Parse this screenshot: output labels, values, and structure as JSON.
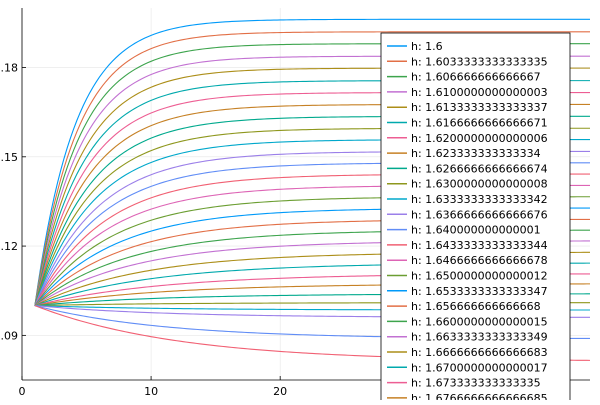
{
  "chart_data": {
    "type": "line",
    "title": "",
    "xlabel": "",
    "ylabel": "",
    "xlim": [
      0,
      44
    ],
    "ylim": [
      0.075,
      0.2
    ],
    "xticks": [
      {
        "value": 0,
        "label": "0"
      },
      {
        "value": 10,
        "label": "10"
      },
      {
        "value": 20,
        "label": "20"
      }
    ],
    "yticks": [
      {
        "value": 0.09,
        "label": ".09"
      },
      {
        "value": 0.12,
        "label": ".12"
      },
      {
        "value": 0.15,
        "label": ".15"
      },
      {
        "value": 0.18,
        "label": ".18"
      }
    ],
    "grid": true,
    "legend_position": "top-right",
    "x_start": 1,
    "x_end": 44,
    "y_start": 0.1,
    "series": [
      {
        "name": "h: 1.6",
        "color": "#009af9",
        "plateau": 0.1962,
        "rate": 0.32
      },
      {
        "name": "h: 1.6033333333333335",
        "color": "#e26f46",
        "plateau": 0.192,
        "rate": 0.31
      },
      {
        "name": "h: 1.606666666666667",
        "color": "#3da44d",
        "plateau": 0.188,
        "rate": 0.3
      },
      {
        "name": "h: 1.6100000000000003",
        "color": "#c271d2",
        "plateau": 0.1838,
        "rate": 0.29
      },
      {
        "name": "h: 1.6133333333333337",
        "color": "#ac8e18",
        "plateau": 0.1798,
        "rate": 0.28
      },
      {
        "name": "h: 1.6166666666666671",
        "color": "#00a9ad",
        "plateau": 0.1756,
        "rate": 0.27
      },
      {
        "name": "h: 1.6200000000000006",
        "color": "#ed5e93",
        "plateau": 0.1716,
        "rate": 0.26
      },
      {
        "name": "h: 1.623333333333334",
        "color": "#c68125",
        "plateau": 0.1676,
        "rate": 0.25
      },
      {
        "name": "h: 1.6266666666666674",
        "color": "#00a98d",
        "plateau": 0.1636,
        "rate": 0.24
      },
      {
        "name": "h: 1.6300000000000008",
        "color": "#8e971d",
        "plateau": 0.1596,
        "rate": 0.23
      },
      {
        "name": "h: 1.6333333333333342",
        "color": "#00a8cb",
        "plateau": 0.1558,
        "rate": 0.22
      },
      {
        "name": "h: 1.6366666666666676",
        "color": "#9b7fe9",
        "plateau": 0.1518,
        "rate": 0.21
      },
      {
        "name": "h: 1.640000000000001",
        "color": "#618df6",
        "plateau": 0.148,
        "rate": 0.2
      },
      {
        "name": "h: 1.6433333333333344",
        "color": "#f16073",
        "plateau": 0.1442,
        "rate": 0.19
      },
      {
        "name": "h: 1.6466666666666678",
        "color": "#dd64b5",
        "plateau": 0.1404,
        "rate": 0.18
      },
      {
        "name": "h: 1.6500000000000012",
        "color": "#6b9e32",
        "plateau": 0.1366,
        "rate": 0.17
      },
      {
        "name": "h: 1.6533333333333347",
        "color": "#009af9",
        "plateau": 0.1328,
        "rate": 0.16
      },
      {
        "name": "h: 1.656666666666668",
        "color": "#e26f46",
        "plateau": 0.129,
        "rate": 0.15
      },
      {
        "name": "h: 1.6600000000000015",
        "color": "#3da44d",
        "plateau": 0.1254,
        "rate": 0.14
      },
      {
        "name": "h: 1.6633333333333349",
        "color": "#c271d2",
        "plateau": 0.1218,
        "rate": 0.13
      },
      {
        "name": "h: 1.6666666666666683",
        "color": "#ac8e18",
        "plateau": 0.118,
        "rate": 0.12
      },
      {
        "name": "h: 1.6700000000000017",
        "color": "#00a9ad",
        "plateau": 0.1144,
        "rate": 0.11
      },
      {
        "name": "h: 1.673333333333335",
        "color": "#ed5e93",
        "plateau": 0.1108,
        "rate": 0.1
      },
      {
        "name": "h: 1.6766666666666685",
        "color": "#c68125",
        "plateau": 0.1074,
        "rate": 0.1
      },
      {
        "series_label_hidden": true,
        "name": "",
        "color": "#00a98d",
        "plateau": 0.104,
        "rate": 0.1
      },
      {
        "series_label_hidden": true,
        "name": "",
        "color": "#8e971d",
        "plateau": 0.101,
        "rate": 0.1
      },
      {
        "series_label_hidden": true,
        "name": "",
        "color": "#00a8cb",
        "plateau": 0.0985,
        "rate": 0.1
      },
      {
        "series_label_hidden": true,
        "name": "",
        "color": "#9b7fe9",
        "plateau": 0.096,
        "rate": 0.1
      },
      {
        "series_label_hidden": true,
        "name": "",
        "color": "#618df6",
        "plateau": 0.0888,
        "rate": 0.1
      },
      {
        "series_label_hidden": true,
        "name": "",
        "color": "#f16073",
        "plateau": 0.0812,
        "rate": 0.09
      }
    ]
  }
}
